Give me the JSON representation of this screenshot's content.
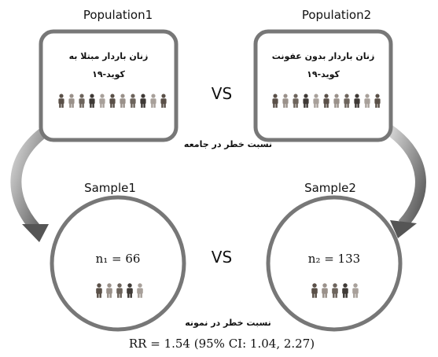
{
  "population1": {
    "title": "Population1",
    "lines": [
      "زنان باردار مبتلا به",
      "کوید-۱۹"
    ]
  },
  "population2": {
    "title": "Population2",
    "lines": [
      "زنان باردار بدون عفونت",
      "کوید-۱۹"
    ]
  },
  "vs_top": "VS",
  "population_risk": "نسبت خطر در جامعه",
  "sample1": {
    "title": "Sample1",
    "n": "n₁ = 66"
  },
  "sample2": {
    "title": "Sample2",
    "n": "n₂ = 133"
  },
  "vs_bottom": "VS",
  "sample_risk": "نسبت خطر در نمونه",
  "result": "RR = 1.54 (95% CI: 1.04, 2.27)"
}
